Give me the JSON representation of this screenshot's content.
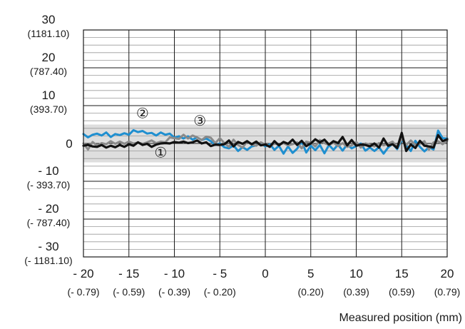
{
  "chart_data": {
    "type": "line",
    "title": "",
    "xlabel": "Measured position (mm)",
    "ylabel": "",
    "xlim": [
      -20,
      20
    ],
    "ylim": [
      -30,
      30
    ],
    "grid": true,
    "tolerance_band": [
      -5,
      5
    ],
    "x_ticks": [
      {
        "value": -20,
        "main": "- 20",
        "sub": "(- 0.79)"
      },
      {
        "value": -15,
        "main": "- 15",
        "sub": "(- 0.59)"
      },
      {
        "value": -10,
        "main": "- 10",
        "sub": "(- 0.39)"
      },
      {
        "value": -5,
        "main": "- 5",
        "sub": "(- 0.20)"
      },
      {
        "value": 0,
        "main": "0",
        "sub": ""
      },
      {
        "value": 5,
        "main": "5",
        "sub": "(0.20)"
      },
      {
        "value": 10,
        "main": "10",
        "sub": "(0.39)"
      },
      {
        "value": 15,
        "main": "15",
        "sub": "(0.59)"
      },
      {
        "value": 20,
        "main": "20",
        "sub": "(0.79)"
      }
    ],
    "y_ticks": [
      {
        "value": 30,
        "main": "30",
        "sub": "(1181.10)"
      },
      {
        "value": 20,
        "main": "20",
        "sub": "(787.40)"
      },
      {
        "value": 10,
        "main": "10",
        "sub": "(393.70)"
      },
      {
        "value": 0,
        "main": "0",
        "sub": ""
      },
      {
        "value": -10,
        "main": "- 10",
        "sub": "(- 393.70)"
      },
      {
        "value": -20,
        "main": "- 20",
        "sub": "(- 787.40)"
      },
      {
        "value": -30,
        "main": "- 30",
        "sub": "(- 1181.10)"
      }
    ],
    "series": [
      {
        "marker": "②",
        "color": "#1f8fd0",
        "x": [
          -20,
          -19.5,
          -19,
          -18.5,
          -18,
          -17.5,
          -17,
          -16.5,
          -16,
          -15.5,
          -15,
          -14.5,
          -14,
          -13.5,
          -13,
          -12.5,
          -12,
          -11.5,
          -11,
          -10.5,
          -10,
          -9.5,
          -9,
          -8.5,
          -8,
          -7.5,
          -7,
          -6.5,
          -6,
          -5.5,
          -5,
          -4.5,
          -4,
          -3.5,
          -3,
          -2.5,
          -2,
          -1.5,
          -1,
          -0.5,
          0,
          0.5,
          1,
          1.5,
          2,
          2.5,
          3,
          3.5,
          4,
          4.5,
          5,
          5.5,
          6,
          6.5,
          7,
          7.5,
          8,
          8.5,
          9,
          9.5,
          10,
          10.5,
          11,
          11.5,
          12,
          12.5,
          13,
          13.5,
          14,
          14.5,
          15,
          15.5,
          16,
          16.5,
          17,
          17.5,
          18,
          18.5,
          19,
          19.5,
          20
        ],
        "y": [
          2.5,
          1.6,
          2.3,
          2.6,
          2.1,
          2.9,
          1.7,
          2.5,
          2.2,
          2.7,
          2.3,
          3.5,
          3.0,
          3.3,
          2.6,
          2.8,
          2.1,
          2.9,
          2.3,
          2.6,
          1.5,
          1.9,
          1.3,
          1.9,
          1.0,
          1.6,
          0.9,
          1.3,
          0.6,
          -0.4,
          0.0,
          -1.0,
          -1.3,
          -0.5,
          -2.0,
          -1.0,
          -1.7,
          -0.8,
          -0.5,
          0.2,
          -0.8,
          -0.2,
          -1.7,
          -0.6,
          -2.7,
          -0.8,
          -2.5,
          -1.4,
          0.5,
          -2.4,
          -0.6,
          -1.8,
          -0.4,
          -2.6,
          -0.4,
          -1.7,
          -0.3,
          -1.9,
          -0.2,
          -1.3,
          -0.7,
          0.0,
          -1.9,
          -1.1,
          -2.0,
          -1.0,
          -2.7,
          -1.1,
          -0.1,
          -1.5,
          1.0,
          -0.5,
          -2.0,
          0.7,
          -0.9,
          -2.1,
          -1.0,
          -1.6,
          3.4,
          1.4,
          1.3
        ]
      },
      {
        "marker": "③",
        "color": "#8a8a8a",
        "x": [
          -20,
          -19.5,
          -19,
          -18.5,
          -18,
          -17.5,
          -17,
          -16.5,
          -16,
          -15.5,
          -15,
          -14.5,
          -14,
          -13.5,
          -13,
          -12.5,
          -12,
          -11.5,
          -11,
          -10.5,
          -10,
          -9.5,
          -9,
          -8.5,
          -8,
          -7.5,
          -7,
          -6.5,
          -6,
          -5.5,
          -5,
          -4.5,
          -4,
          -3.5,
          -3,
          -2.5,
          -2,
          -1.5,
          -1,
          -0.5,
          0,
          0.5,
          1,
          1.5,
          2,
          2.5,
          3,
          3.5,
          4,
          4.5,
          5,
          5.5,
          6,
          6.5,
          7,
          7.5,
          8,
          8.5,
          9,
          9.5,
          10,
          10.5,
          11,
          11.5,
          12,
          12.5,
          13,
          13.5,
          14,
          14.5,
          15,
          15.5,
          16,
          16.5,
          17,
          17.5,
          18,
          18.5,
          19,
          19.5,
          20
        ],
        "y": [
          0.0,
          -1.6,
          0.4,
          -0.6,
          0.1,
          -0.2,
          0.6,
          -0.1,
          0.5,
          -0.1,
          0.5,
          0.0,
          0.2,
          -0.1,
          0.3,
          0.8,
          0.1,
          0.5,
          0.3,
          1.6,
          1.4,
          1.2,
          2.3,
          1.3,
          2.1,
          1.6,
          0.9,
          1.8,
          1.5,
          0.1,
          1.4,
          0.1,
          -0.9,
          1.0,
          -0.4,
          -1.1,
          0.5,
          -0.3,
          -0.6,
          0.3,
          -0.3,
          -0.8,
          0.0,
          -0.4,
          0.1,
          -0.5,
          -0.2,
          0.3,
          -1.3,
          0.5,
          0.2,
          -0.8,
          0.9,
          0.1,
          -0.4,
          0.2,
          -0.7,
          0.1,
          -0.9,
          -0.5,
          0.4,
          -1.1,
          0.0,
          -0.3,
          -0.8,
          0.1,
          -0.5,
          -0.1,
          0.5,
          -1.0,
          1.3,
          -0.4,
          0.8,
          -0.4,
          -0.1,
          0.6,
          -1.6,
          0.3,
          0.6,
          -0.2,
          0.7
        ]
      },
      {
        "marker": "①",
        "color": "#111111",
        "x": [
          -20,
          -19.5,
          -19,
          -18.5,
          -18,
          -17.5,
          -17,
          -16.5,
          -16,
          -15.5,
          -15,
          -14.5,
          -14,
          -13.5,
          -13,
          -12.5,
          -12,
          -11.5,
          -11,
          -10.5,
          -10,
          -9.5,
          -9,
          -8.5,
          -8,
          -7.5,
          -7,
          -6.5,
          -6,
          -5.5,
          -5,
          -4.5,
          -4,
          -3.5,
          -3,
          -2.5,
          -2,
          -1.5,
          -1,
          -0.5,
          0,
          0.5,
          1,
          1.5,
          2,
          2.5,
          3,
          3.5,
          4,
          4.5,
          5,
          5.5,
          6,
          6.5,
          7,
          7.5,
          8,
          8.5,
          9,
          9.5,
          10,
          10.5,
          11,
          11.5,
          12,
          12.5,
          13,
          13.5,
          14,
          14.5,
          15,
          15.5,
          16,
          16.5,
          17,
          17.5,
          18,
          18.5,
          19,
          19.5,
          20
        ],
        "y": [
          -0.6,
          -0.4,
          -0.8,
          -0.9,
          -0.4,
          -1.1,
          -0.6,
          -1.0,
          -0.4,
          -0.9,
          -0.2,
          -0.6,
          0.3,
          -0.4,
          -0.1,
          -0.9,
          -0.3,
          0.0,
          0.1,
          0.0,
          0.4,
          0.2,
          0.5,
          0.1,
          0.3,
          0.8,
          0.0,
          0.3,
          -0.7,
          -0.3,
          -0.4,
          -0.2,
          0.8,
          -0.8,
          0.4,
          -0.1,
          0.6,
          -0.2,
          0.5,
          -0.5,
          -0.3,
          -0.9,
          0.6,
          -0.5,
          0.4,
          -0.1,
          1.0,
          -0.4,
          0.7,
          -0.7,
          0.0,
          1.1,
          0.3,
          1.0,
          -0.3,
          0.6,
          0.1,
          1.7,
          -0.5,
          0.9,
          -0.6,
          -0.3,
          -0.4,
          -0.8,
          0.0,
          -1.1,
          1.3,
          -0.6,
          -0.2,
          -1.2,
          2.8,
          -2.0,
          -0.3,
          -1.2,
          0.7,
          -0.6,
          -0.8,
          -1.1,
          2.2,
          0.6,
          1.1
        ]
      }
    ],
    "markers": [
      {
        "text": "①",
        "x": -11.5,
        "y": -2.4
      },
      {
        "text": "②",
        "x": -13.5,
        "y": 8.0
      },
      {
        "text": "③",
        "x": -7.2,
        "y": 6.0
      }
    ]
  }
}
